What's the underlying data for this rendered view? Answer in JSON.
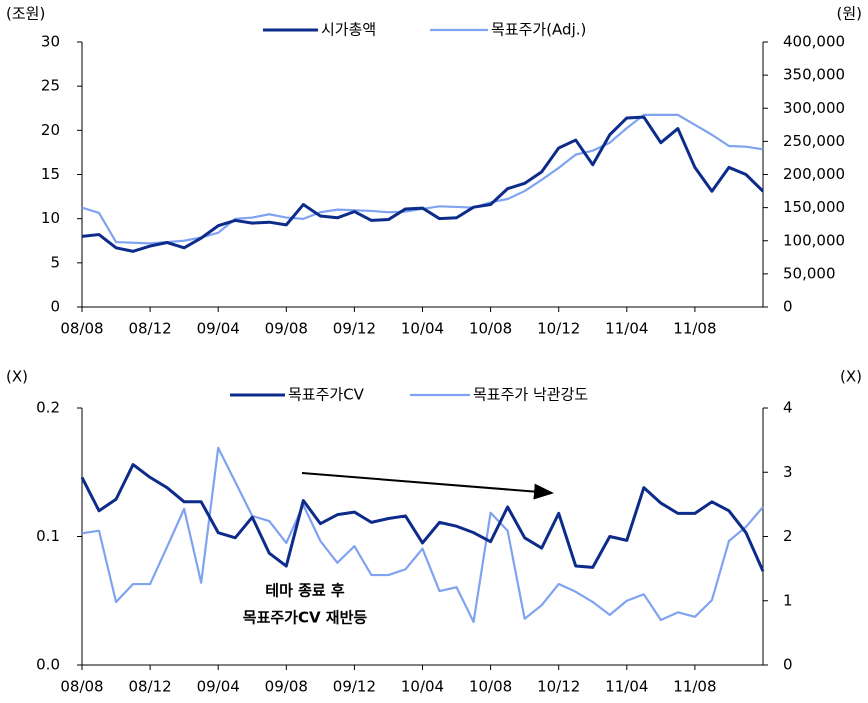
{
  "chart_data": [
    {
      "type": "line",
      "y_label": "(조원)",
      "y2_label": "(원)",
      "categories": [
        "08/08",
        null,
        null,
        null,
        "08/12",
        null,
        null,
        null,
        "09/04",
        null,
        null,
        null,
        "09/08",
        null,
        null,
        null,
        "09/12",
        null,
        null,
        null,
        "10/04",
        null,
        null,
        null,
        "10/08",
        null,
        null,
        null,
        "10/12",
        null,
        null,
        null,
        "11/04",
        null,
        null,
        null,
        "11/08",
        null,
        null,
        null,
        null
      ],
      "ylim": [
        0,
        30
      ],
      "yticks": [
        0,
        5,
        10,
        15,
        20,
        25,
        30
      ],
      "y2lim": [
        0,
        400000
      ],
      "y2ticks": [
        0,
        {
          "value": 50000,
          "label": "50,000"
        },
        {
          "value": 100000,
          "label": "100,000"
        },
        {
          "value": 150000,
          "label": "150,000"
        },
        {
          "value": 200000,
          "label": "200,000"
        },
        {
          "value": 250000,
          "label": "250,000"
        },
        {
          "value": 300000,
          "label": "300,000"
        },
        {
          "value": 350000,
          "label": "350,000"
        },
        {
          "value": 400000,
          "label": "400,000"
        }
      ],
      "series": [
        {
          "name": "시가총액",
          "color": "#0d2b8a",
          "axis": "y",
          "values": [
            8.0,
            8.2,
            6.7,
            6.3,
            6.9,
            7.3,
            6.7,
            7.8,
            9.2,
            9.8,
            9.5,
            9.6,
            9.3,
            11.6,
            10.3,
            10.1,
            10.8,
            9.8,
            9.9,
            11.1,
            11.2,
            10.0,
            10.1,
            11.3,
            11.6,
            13.4,
            14.0,
            15.3,
            18.0,
            18.9,
            16.1,
            19.5,
            21.4,
            21.5,
            18.6,
            20.2,
            15.8,
            13.1,
            15.8,
            15.0,
            13.1
          ]
        },
        {
          "name": "목표주가(Adj.)",
          "color": "#7fa3f0",
          "axis": "y2",
          "values": [
            150000,
            142000,
            98000,
            97000,
            96000,
            98000,
            100000,
            105000,
            112000,
            133000,
            135000,
            140000,
            135000,
            133000,
            143000,
            147000,
            146000,
            145000,
            143000,
            144000,
            148000,
            152000,
            151000,
            150000,
            158000,
            163000,
            175000,
            192000,
            210000,
            230000,
            236000,
            248000,
            270000,
            290000,
            290000,
            290000,
            275000,
            260000,
            243000,
            242000,
            238000
          ]
        }
      ]
    },
    {
      "type": "line",
      "y_label": "(X)",
      "y2_label": "(X)",
      "categories": [
        "08/08",
        null,
        null,
        null,
        "08/12",
        null,
        null,
        null,
        "09/04",
        null,
        null,
        null,
        "09/08",
        null,
        null,
        null,
        "09/12",
        null,
        null,
        null,
        "10/04",
        null,
        null,
        null,
        "10/08",
        null,
        null,
        null,
        "10/12",
        null,
        null,
        null,
        "11/04",
        null,
        null,
        null,
        "11/08",
        null,
        null,
        null,
        null
      ],
      "ylim": [
        0,
        0.2
      ],
      "yticks": [
        {
          "value": 0,
          "label": "0.0"
        },
        0.1,
        0.2
      ],
      "y2lim": [
        0,
        4
      ],
      "y2ticks": [
        0,
        1,
        2,
        3,
        4
      ],
      "annotations": [
        "테마 종료 후",
        "목표주가CV 재반등"
      ],
      "series": [
        {
          "name": "목표주가CV",
          "color": "#0d2b8a",
          "axis": "y",
          "values": [
            0.146,
            0.12,
            0.129,
            0.156,
            0.146,
            0.138,
            0.127,
            0.127,
            0.103,
            0.099,
            0.115,
            0.087,
            0.077,
            0.128,
            0.11,
            0.117,
            0.119,
            0.111,
            0.114,
            0.116,
            0.095,
            0.111,
            0.108,
            0.103,
            0.096,
            0.123,
            0.099,
            0.091,
            0.118,
            0.077,
            0.076,
            0.1,
            0.097,
            0.138,
            0.126,
            0.118,
            0.118,
            0.127,
            0.12,
            0.103,
            0.073
          ]
        },
        {
          "name": "목표주가 낙관강도",
          "color": "#7fa3f0",
          "axis": "y2",
          "values": [
            2.05,
            2.09,
            0.98,
            1.26,
            1.26,
            1.84,
            2.43,
            1.28,
            3.38,
            2.85,
            2.32,
            2.24,
            1.9,
            2.49,
            1.93,
            1.59,
            1.85,
            1.4,
            1.4,
            1.49,
            1.81,
            1.15,
            1.21,
            0.67,
            2.37,
            2.09,
            0.72,
            0.93,
            1.26,
            1.14,
            0.98,
            0.78,
            1.0,
            1.1,
            0.7,
            0.82,
            0.75,
            1.01,
            1.93,
            2.15,
            2.46
          ]
        }
      ]
    }
  ]
}
